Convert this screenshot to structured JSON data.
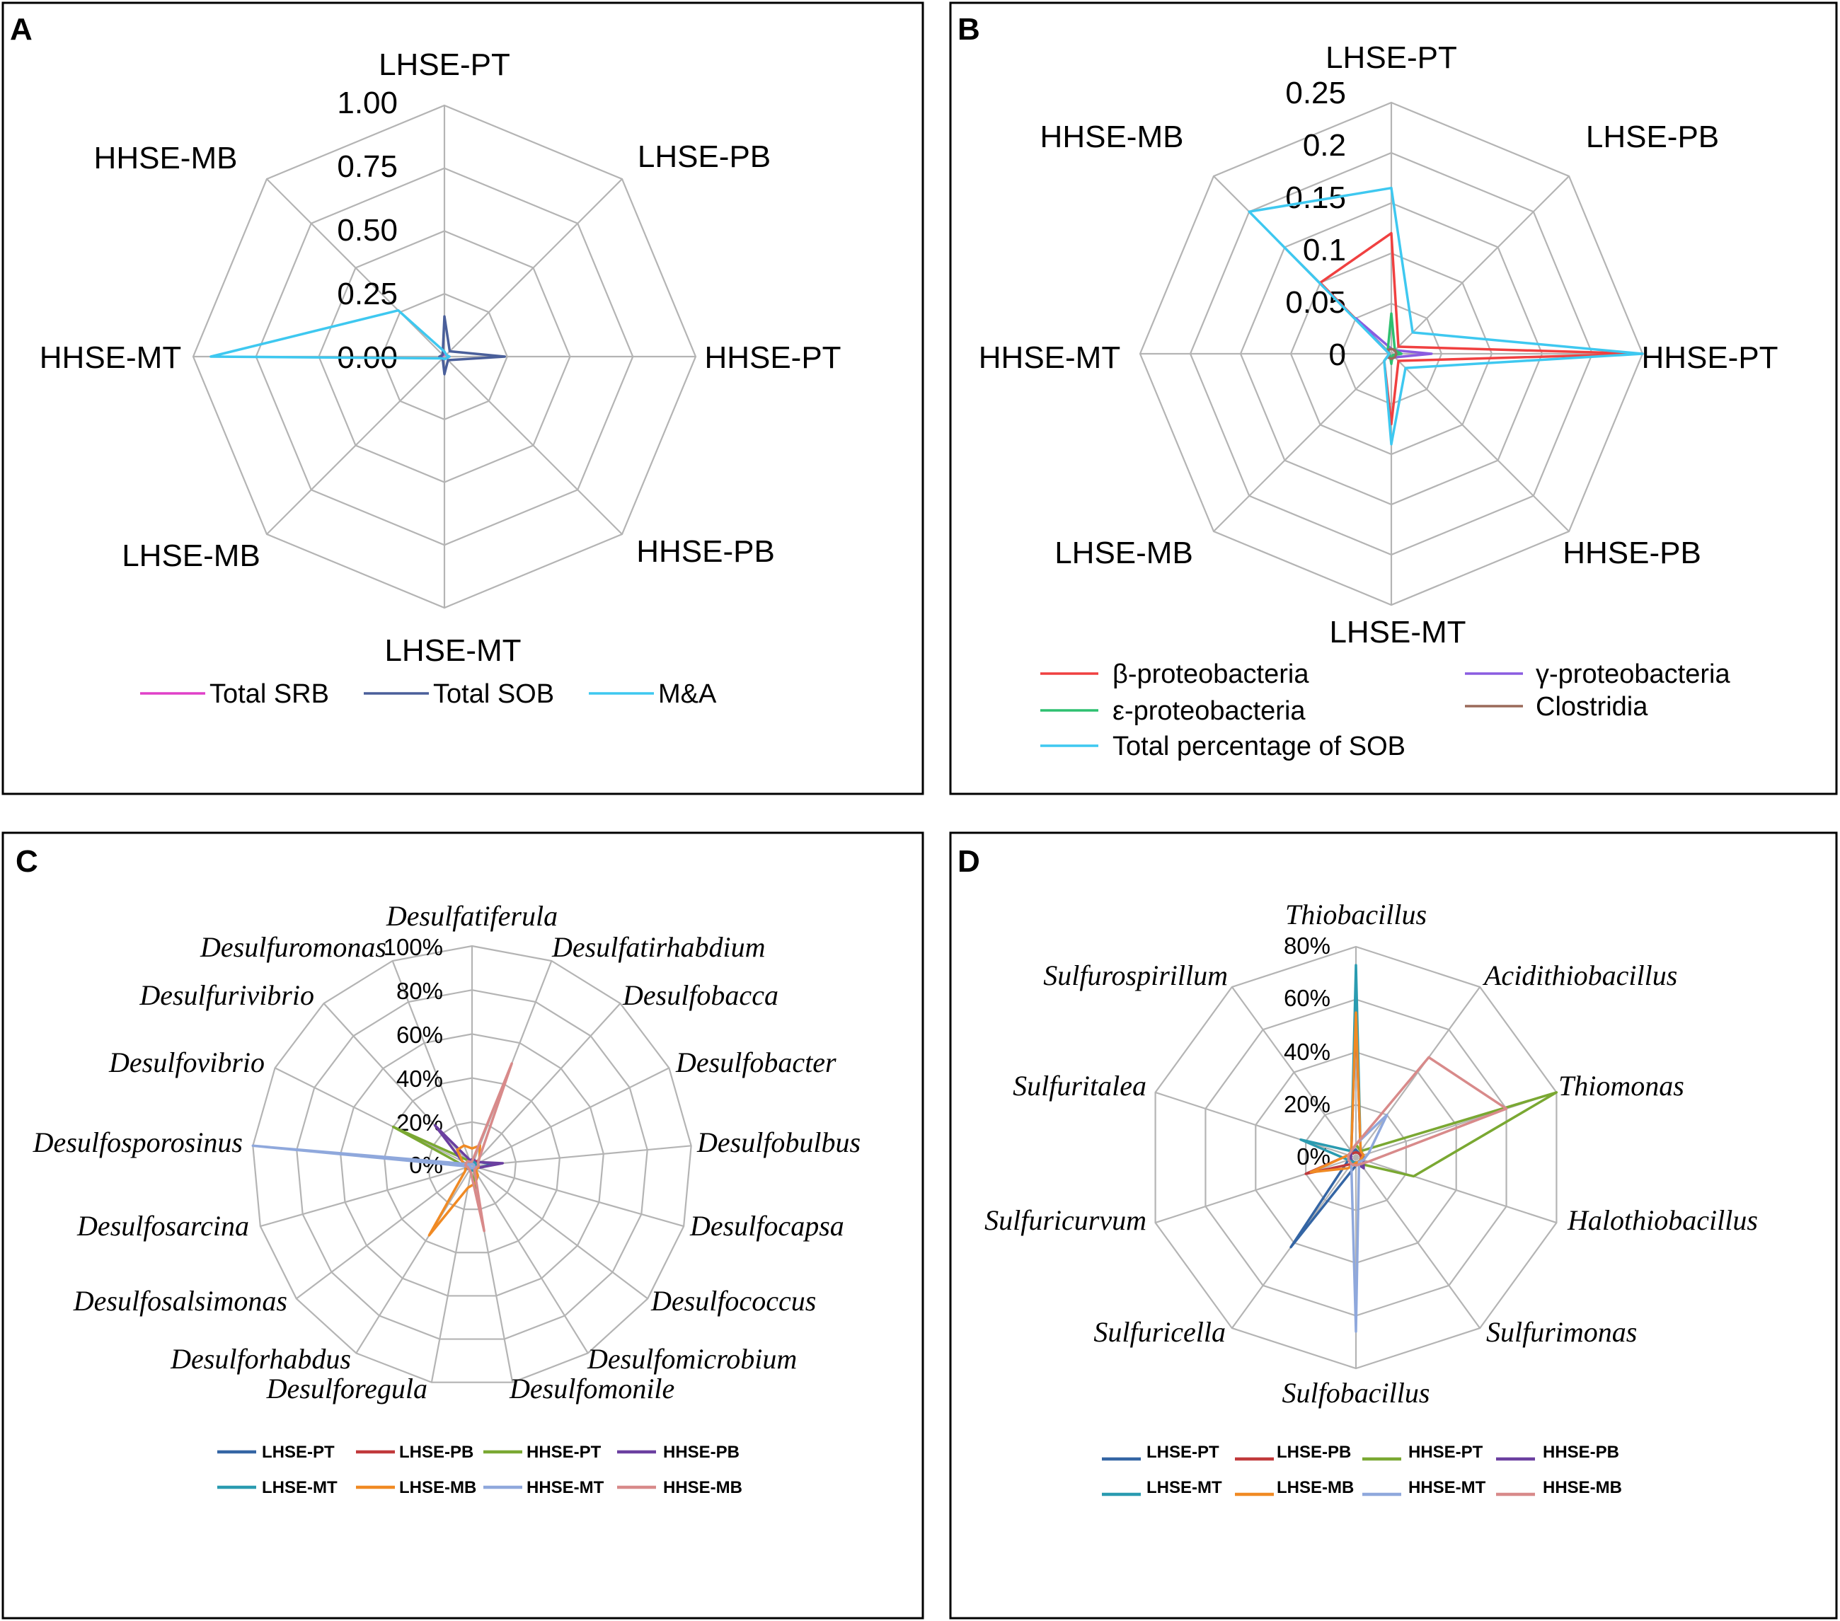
{
  "colors": {
    "srb": "#e040c8",
    "sob": "#4a5f9a",
    "ma": "#3ec8f0",
    "beta": "#f04040",
    "gamma": "#8a5ce0",
    "epsilon": "#2ec070",
    "clostridia": "#9a6a5a",
    "total_sob": "#3ec8f0",
    "LHSE-PT": "#3465a4",
    "LHSE-PB": "#c0393b",
    "HHSE-PT": "#7aa832",
    "HHSE-PB": "#6b3fa0",
    "LHSE-MT": "#2a9bb0",
    "LHSE-MB": "#f08a24",
    "HHSE-MT": "#8fa8dc",
    "HHSE-MB": "#d88a8a"
  },
  "chart_data": [
    {
      "id": "A",
      "type": "radar",
      "panel_label": "A",
      "axes": [
        "LHSE-PT",
        "LHSE-PB",
        "HHSE-PT",
        "HHSE-PB",
        "LHSE-MT",
        "LHSE-MB",
        "HHSE-MT",
        "HHSE-MB"
      ],
      "rmax": 1.0,
      "ticks": [
        0.0,
        0.25,
        0.5,
        0.75,
        1.0
      ],
      "tick_labels": [
        "0.00",
        "0.25",
        "0.50",
        "0.75",
        "1.00"
      ],
      "series": [
        {
          "name": "Total SRB",
          "color_key": "srb",
          "values": [
            0.01,
            0.01,
            0.02,
            0.01,
            0.01,
            0.01,
            0.01,
            0.01
          ]
        },
        {
          "name": "Total SOB",
          "color_key": "sob",
          "values": [
            0.16,
            0.03,
            0.24,
            0.02,
            0.07,
            0.01,
            0.02,
            0.01
          ]
        },
        {
          "name": "M&A",
          "color_key": "ma",
          "values": [
            0.02,
            0.01,
            0.02,
            0.01,
            0.01,
            0.01,
            0.93,
            0.26
          ]
        }
      ],
      "legend": [
        "Total SRB",
        "Total SOB",
        "M&A"
      ]
    },
    {
      "id": "B",
      "type": "radar",
      "panel_label": "B",
      "axes": [
        "LHSE-PT",
        "LHSE-PB",
        "HHSE-PT",
        "HHSE-PB",
        "LHSE-MT",
        "LHSE-MB",
        "HHSE-MT",
        "HHSE-MB"
      ],
      "rmax": 0.25,
      "ticks": [
        0,
        0.05,
        0.1,
        0.15,
        0.2,
        0.25
      ],
      "tick_labels": [
        "0",
        "0.05",
        "0.1",
        "0.15",
        "0.2",
        "0.25"
      ],
      "series": [
        {
          "name": "β-proteobacteria",
          "color_key": "beta",
          "values": [
            0.12,
            0.01,
            0.25,
            0.01,
            0.07,
            0.01,
            0.002,
            0.1
          ]
        },
        {
          "name": "γ-proteobacteria",
          "color_key": "gamma",
          "values": [
            0.005,
            0.005,
            0.04,
            0.005,
            0.005,
            0.005,
            0.002,
            0.05
          ]
        },
        {
          "name": "ε-proteobacteria",
          "color_key": "epsilon",
          "values": [
            0.04,
            0.005,
            0.01,
            0.002,
            0.01,
            0.002,
            0.002,
            0.005
          ]
        },
        {
          "name": "Clostridia",
          "color_key": "clostridia",
          "values": [
            0.005,
            0.005,
            0.005,
            0.005,
            0.005,
            0.005,
            0.002,
            0.005
          ]
        },
        {
          "name": "Total percentage of SOB",
          "color_key": "total_sob",
          "values": [
            0.165,
            0.03,
            0.25,
            0.02,
            0.09,
            0.01,
            0.002,
            0.2
          ]
        }
      ],
      "legend": [
        "β-proteobacteria",
        "γ-proteobacteria",
        "ε-proteobacteria",
        "Clostridia",
        "Total percentage of SOB"
      ]
    },
    {
      "id": "C",
      "type": "radar",
      "panel_label": "C",
      "axes": [
        "Desulfatiferula",
        "Desulfatirhabdium",
        "Desulfobacca",
        "Desulfobacter",
        "Desulfobulbus",
        "Desulfocapsa",
        "Desulfococcus",
        "Desulfomicrobium",
        "Desulfomonile",
        "Desulforegula",
        "Desulforhabdus",
        "Desulfosalsimonas",
        "Desulfosarcina",
        "Desulfosporosinus",
        "Desulfovibrio",
        "Desulfurivibrio",
        "Desulfuromonas"
      ],
      "rmax": 100,
      "ticks": [
        0,
        20,
        40,
        60,
        80,
        100
      ],
      "tick_labels": [
        "0%",
        "20%",
        "40%",
        "60%",
        "80%",
        "100%"
      ],
      "series": [
        {
          "name": "LHSE-PT",
          "color_key": "LHSE-PT",
          "values": [
            2,
            3,
            2,
            4,
            10,
            3,
            2,
            2,
            2,
            2,
            2,
            2,
            3,
            2,
            3,
            2,
            2
          ]
        },
        {
          "name": "LHSE-PB",
          "color_key": "LHSE-PB",
          "values": [
            1,
            2,
            3,
            2,
            2,
            2,
            2,
            2,
            2,
            2,
            2,
            2,
            2,
            2,
            2,
            2,
            1
          ]
        },
        {
          "name": "HHSE-PT",
          "color_key": "HHSE-PT",
          "values": [
            2,
            2,
            2,
            2,
            2,
            2,
            2,
            2,
            10,
            3,
            2,
            2,
            2,
            4,
            40,
            4,
            2
          ]
        },
        {
          "name": "HHSE-PB",
          "color_key": "HHSE-PB",
          "values": [
            3,
            3,
            2,
            4,
            14,
            3,
            2,
            2,
            2,
            2,
            2,
            2,
            2,
            3,
            5,
            25,
            3
          ]
        },
        {
          "name": "LHSE-MT",
          "color_key": "LHSE-MT",
          "values": [
            2,
            2,
            2,
            2,
            2,
            2,
            2,
            2,
            2,
            2,
            2,
            2,
            2,
            2,
            2,
            2,
            2
          ]
        },
        {
          "name": "LHSE-MB",
          "color_key": "LHSE-MB",
          "values": [
            8,
            10,
            5,
            3,
            3,
            3,
            2,
            5,
            8,
            10,
            37,
            4,
            3,
            3,
            5,
            10,
            10
          ]
        },
        {
          "name": "HHSE-MT",
          "color_key": "HHSE-MT",
          "values": [
            1,
            1,
            1,
            1,
            1,
            1,
            1,
            1,
            1,
            1,
            1,
            1,
            1,
            100,
            2,
            1,
            1
          ]
        },
        {
          "name": "HHSE-MB",
          "color_key": "HHSE-MB",
          "values": [
            2,
            50,
            5,
            3,
            3,
            2,
            2,
            2,
            30,
            3,
            2,
            2,
            2,
            3,
            3,
            3,
            2
          ]
        }
      ],
      "legend": [
        "LHSE-PT",
        "LHSE-PB",
        "HHSE-PT",
        "HHSE-PB",
        "LHSE-MT",
        "LHSE-MB",
        "HHSE-MT",
        "HHSE-MB"
      ]
    },
    {
      "id": "D",
      "type": "radar",
      "panel_label": "D",
      "axes": [
        "Thiobacillus",
        "Acidithiobacillus",
        "Thiomonas",
        "Halothiobacillus",
        "Sulfurimonas",
        "Sulfobacillus",
        "Sulfuricella",
        "Sulfuricurvum",
        "Sulfuritalea",
        "Sulfurospirillum"
      ],
      "rmax": 80,
      "ticks": [
        0,
        20,
        40,
        60,
        80
      ],
      "tick_labels": [
        "0%",
        "20%",
        "40%",
        "60%",
        "80%"
      ],
      "series": [
        {
          "name": "LHSE-PT",
          "color_key": "LHSE-PT",
          "values": [
            3,
            2,
            2,
            3,
            2,
            3,
            42,
            3,
            2,
            3
          ]
        },
        {
          "name": "LHSE-PB",
          "color_key": "LHSE-PB",
          "values": [
            2,
            2,
            2,
            2,
            2,
            2,
            3,
            20,
            3,
            2
          ]
        },
        {
          "name": "HHSE-PT",
          "color_key": "HHSE-PT",
          "values": [
            5,
            3,
            80,
            23,
            3,
            3,
            3,
            3,
            3,
            3
          ]
        },
        {
          "name": "HHSE-PB",
          "color_key": "HHSE-PB",
          "values": [
            54,
            3,
            3,
            3,
            5,
            2,
            2,
            2,
            2,
            3
          ]
        },
        {
          "name": "LHSE-MT",
          "color_key": "LHSE-MT",
          "values": [
            73,
            3,
            3,
            2,
            2,
            2,
            2,
            3,
            22,
            3
          ]
        },
        {
          "name": "LHSE-MB",
          "color_key": "LHSE-MB",
          "values": [
            55,
            3,
            3,
            2,
            2,
            2,
            5,
            18,
            3,
            3
          ]
        },
        {
          "name": "HHSE-MT",
          "color_key": "HHSE-MT",
          "values": [
            5,
            20,
            5,
            3,
            2,
            66,
            3,
            3,
            3,
            3
          ]
        },
        {
          "name": "HHSE-MB",
          "color_key": "HHSE-MB",
          "values": [
            5,
            47,
            60,
            5,
            3,
            3,
            3,
            3,
            3,
            3
          ]
        }
      ],
      "legend": [
        "LHSE-PT",
        "LHSE-PB",
        "HHSE-PT",
        "HHSE-PB",
        "LHSE-MT",
        "LHSE-MB",
        "HHSE-MT",
        "HHSE-MB"
      ]
    }
  ]
}
